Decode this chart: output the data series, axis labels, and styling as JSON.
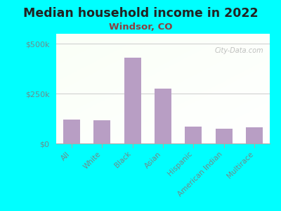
{
  "title": "Median household income in 2022",
  "subtitle": "Windsor, CO",
  "categories": [
    "All",
    "White",
    "Black",
    "Asian",
    "Hispanic",
    "American Indian",
    "Multirace"
  ],
  "values": [
    120000,
    115000,
    430000,
    275000,
    85000,
    75000,
    80000
  ],
  "bar_color": "#b89ec4",
  "background_color": "#00ffff",
  "title_fontsize": 12.5,
  "subtitle_fontsize": 9.5,
  "title_color": "#222222",
  "subtitle_color": "#8b4040",
  "tick_color": "#6e8b8b",
  "watermark": "City-Data.com",
  "ylim": [
    0,
    550000
  ],
  "yticks": [
    0,
    250000,
    500000
  ],
  "ytick_labels": [
    "$0",
    "$250k",
    "$500k"
  ],
  "grid_color": "#cccccc",
  "plot_bg_color_top": "#f0f8f0",
  "plot_bg_color_bottom": "#d8f0d8"
}
